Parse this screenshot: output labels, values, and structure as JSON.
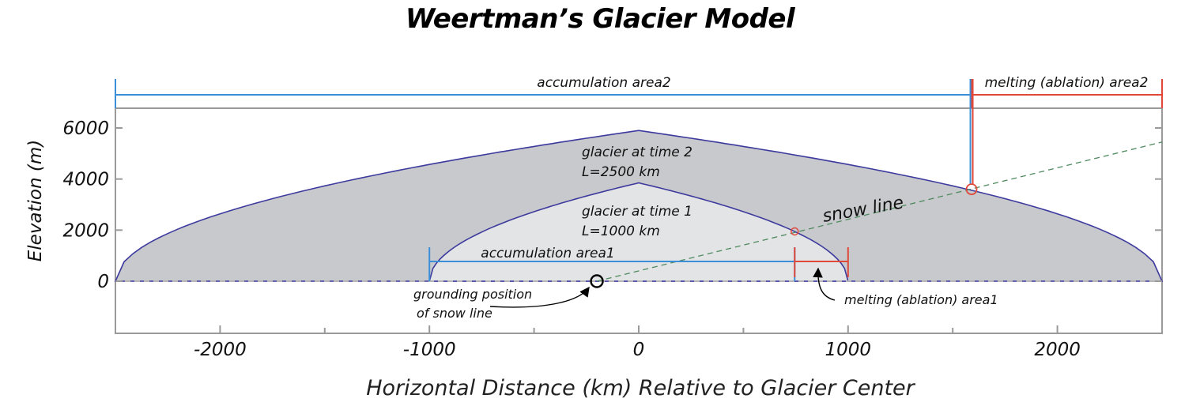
{
  "title": "Weertman’s Glacier Model",
  "axes": {
    "xlabel": "Horizontal Distance (km) Relative to Glacier Center",
    "ylabel": "Elevation (m)",
    "xlim": [
      -2500,
      2500
    ],
    "ylim": [
      -2000,
      6000
    ],
    "xticks": [
      -2000,
      -1000,
      0,
      1000,
      2000
    ],
    "yticks": [
      0,
      2000,
      4000,
      6000
    ]
  },
  "glaciers": [
    {
      "id": "time1",
      "label_line1": "glacier at time 1",
      "label_line2": "L=1000 km",
      "half_length_km": 1000,
      "peak_m": 3850,
      "fill": "#e3e4e6"
    },
    {
      "id": "time2",
      "label_line1": "glacier at time 2",
      "label_line2": "L=2500 km",
      "half_length_km": 2500,
      "peak_m": 5900,
      "fill": "#c8c9cc"
    }
  ],
  "snow_line": {
    "label": "snow line",
    "start": {
      "x": -200,
      "y": 0
    },
    "end": {
      "x": 2500,
      "y": 5450
    }
  },
  "grounding": {
    "label_line1": "grounding position",
    "label_line2": "of snow line",
    "x": -200,
    "y": 0
  },
  "intersections": [
    {
      "x": 745,
      "y": 1950
    },
    {
      "x": 1590,
      "y": 3600
    }
  ],
  "areas": {
    "accumulation1": {
      "label": "accumulation area1",
      "x_start": -1000,
      "x_end": 745
    },
    "ablation1": {
      "label": "melting (ablation) area1",
      "x_start": 745,
      "x_end": 1000
    },
    "accumulation2": {
      "label": "accumulation area2",
      "x_start": -2500,
      "x_end": 1590
    },
    "ablation2": {
      "label": "melting (ablation) area2",
      "x_start": 1590,
      "x_end": 2500
    }
  },
  "colors": {
    "outline": "#3d3a9e",
    "accumulation": "#3a8fd8",
    "ablation": "#e0483a",
    "snowline": "#4f8a5f",
    "axis": "#9a9a9a"
  }
}
